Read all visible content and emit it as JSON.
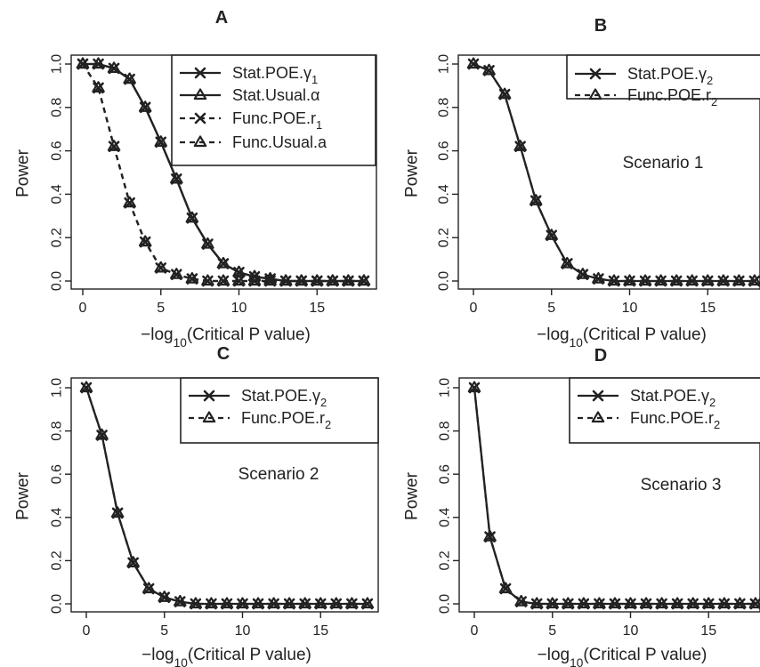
{
  "chart_data": [
    {
      "panel": "A",
      "type": "line",
      "ylabel": "Power",
      "xlabel": "−log10(Critical P value)",
      "x_ticks": [
        0,
        5,
        10,
        15
      ],
      "y_ticks": [
        "0.0",
        "0.2",
        "0.4",
        "0.6",
        "0.8",
        "1.0"
      ],
      "xlim": [
        0,
        18
      ],
      "ylim": [
        0,
        1
      ],
      "annotation": "",
      "legend_position": "top-right",
      "x": [
        0,
        1,
        2,
        3,
        4,
        5,
        6,
        7,
        8,
        9,
        10,
        11,
        12,
        13,
        14,
        15,
        16,
        17,
        18
      ],
      "series": [
        {
          "name": "Stat.POE.γ1",
          "line": "solid",
          "marker": "x",
          "values": [
            1.0,
            1.0,
            0.98,
            0.93,
            0.8,
            0.64,
            0.47,
            0.29,
            0.17,
            0.08,
            0.04,
            0.02,
            0.01,
            0.0,
            0.0,
            0.0,
            0.0,
            0.0,
            0.0
          ]
        },
        {
          "name": "Stat.Usual.α",
          "line": "solid",
          "marker": "triangle",
          "values": [
            1.0,
            1.0,
            0.98,
            0.93,
            0.8,
            0.64,
            0.47,
            0.29,
            0.17,
            0.08,
            0.04,
            0.02,
            0.01,
            0.0,
            0.0,
            0.0,
            0.0,
            0.0,
            0.0
          ]
        },
        {
          "name": "Func.POE.r1",
          "line": "dashed",
          "marker": "x",
          "values": [
            1.0,
            0.89,
            0.62,
            0.36,
            0.18,
            0.06,
            0.03,
            0.01,
            0.0,
            0.0,
            0.0,
            0.0,
            0.0,
            0.0,
            0.0,
            0.0,
            0.0,
            0.0,
            0.0
          ]
        },
        {
          "name": "Func.Usual.a",
          "line": "dashed",
          "marker": "triangle",
          "values": [
            1.0,
            0.89,
            0.62,
            0.36,
            0.18,
            0.06,
            0.03,
            0.01,
            0.0,
            0.0,
            0.0,
            0.0,
            0.0,
            0.0,
            0.0,
            0.0,
            0.0,
            0.0,
            0.0
          ]
        }
      ]
    },
    {
      "panel": "B",
      "type": "line",
      "ylabel": "Power",
      "xlabel": "−log10(Critical P value)",
      "x_ticks": [
        0,
        5,
        10,
        15
      ],
      "y_ticks": [
        "0.0",
        "0.2",
        "0.4",
        "0.6",
        "0.8",
        "1.0"
      ],
      "xlim": [
        0,
        18
      ],
      "ylim": [
        0,
        1
      ],
      "annotation": "Scenario 1",
      "legend_position": "top-right",
      "x": [
        0,
        1,
        2,
        3,
        4,
        5,
        6,
        7,
        8,
        9,
        10,
        11,
        12,
        13,
        14,
        15,
        16,
        17,
        18
      ],
      "series": [
        {
          "name": "Stat.POE.γ2",
          "line": "solid",
          "marker": "x",
          "values": [
            1.0,
            0.97,
            0.86,
            0.62,
            0.37,
            0.21,
            0.08,
            0.03,
            0.01,
            0.0,
            0.0,
            0.0,
            0.0,
            0.0,
            0.0,
            0.0,
            0.0,
            0.0,
            0.0
          ]
        },
        {
          "name": "Func.POE.r2",
          "line": "dashed",
          "marker": "triangle",
          "values": [
            1.0,
            0.97,
            0.86,
            0.62,
            0.37,
            0.21,
            0.08,
            0.03,
            0.01,
            0.0,
            0.0,
            0.0,
            0.0,
            0.0,
            0.0,
            0.0,
            0.0,
            0.0,
            0.0
          ]
        }
      ]
    },
    {
      "panel": "C",
      "type": "line",
      "ylabel": "Power",
      "xlabel": "−log10(Critical P value)",
      "x_ticks": [
        0,
        5,
        10,
        15
      ],
      "y_ticks": [
        "0.0",
        "0.2",
        "0.4",
        "0.6",
        "0.8",
        "1.0"
      ],
      "xlim": [
        0,
        18
      ],
      "ylim": [
        0,
        1
      ],
      "annotation": "Scenario 2",
      "legend_position": "top-right",
      "x": [
        0,
        1,
        2,
        3,
        4,
        5,
        6,
        7,
        8,
        9,
        10,
        11,
        12,
        13,
        14,
        15,
        16,
        17,
        18
      ],
      "series": [
        {
          "name": "Stat.POE.γ2",
          "line": "solid",
          "marker": "x",
          "values": [
            1.0,
            0.78,
            0.42,
            0.19,
            0.07,
            0.03,
            0.01,
            0.0,
            0.0,
            0.0,
            0.0,
            0.0,
            0.0,
            0.0,
            0.0,
            0.0,
            0.0,
            0.0,
            0.0
          ]
        },
        {
          "name": "Func.POE.r2",
          "line": "dashed",
          "marker": "triangle",
          "values": [
            1.0,
            0.78,
            0.42,
            0.19,
            0.07,
            0.03,
            0.01,
            0.0,
            0.0,
            0.0,
            0.0,
            0.0,
            0.0,
            0.0,
            0.0,
            0.0,
            0.0,
            0.0,
            0.0
          ]
        }
      ]
    },
    {
      "panel": "D",
      "type": "line",
      "ylabel": "Power",
      "xlabel": "−log10(Critical P value)",
      "x_ticks": [
        0,
        5,
        10,
        15
      ],
      "y_ticks": [
        "0.0",
        "0.2",
        "0.4",
        "0.6",
        "0.8",
        "1.0"
      ],
      "xlim": [
        0,
        18
      ],
      "ylim": [
        0,
        1
      ],
      "annotation": "Scenario 3",
      "legend_position": "top-right",
      "x": [
        0,
        1,
        2,
        3,
        4,
        5,
        6,
        7,
        8,
        9,
        10,
        11,
        12,
        13,
        14,
        15,
        16,
        17,
        18
      ],
      "series": [
        {
          "name": "Stat.POE.γ2",
          "line": "solid",
          "marker": "x",
          "values": [
            1.0,
            0.31,
            0.07,
            0.01,
            0.0,
            0.0,
            0.0,
            0.0,
            0.0,
            0.0,
            0.0,
            0.0,
            0.0,
            0.0,
            0.0,
            0.0,
            0.0,
            0.0,
            0.0
          ]
        },
        {
          "name": "Func.POE.r2",
          "line": "dashed",
          "marker": "triangle",
          "values": [
            1.0,
            0.31,
            0.07,
            0.01,
            0.0,
            0.0,
            0.0,
            0.0,
            0.0,
            0.0,
            0.0,
            0.0,
            0.0,
            0.0,
            0.0,
            0.0,
            0.0,
            0.0,
            0.0
          ]
        }
      ]
    }
  ]
}
